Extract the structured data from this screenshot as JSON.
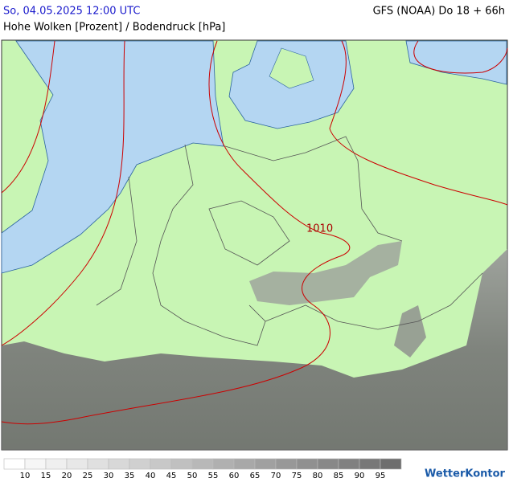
{
  "header": {
    "datetime": "So, 04.05.2025 12:00 UTC",
    "model": "GFS (NOAA) Do 18 + 66h",
    "subtitle": "Hohe Wolken [Prozent] / Bodendruck [hPa]"
  },
  "map": {
    "isobar_label": "1010"
  },
  "legend": {
    "colors": [
      "#ffffff",
      "#f6f6f6",
      "#efefef",
      "#e8e8e8",
      "#e0e0e0",
      "#d8d8d8",
      "#d0d0d0",
      "#c8c8c8",
      "#c0c0c0",
      "#b8b8b8",
      "#b0b0b0",
      "#a8a8a8",
      "#a0a0a0",
      "#989898",
      "#909090",
      "#888888",
      "#808080",
      "#787878",
      "#6e6e6e"
    ],
    "labels": [
      10,
      15,
      20,
      25,
      30,
      35,
      40,
      45,
      50,
      55,
      60,
      65,
      70,
      75,
      80,
      85,
      90,
      95
    ]
  },
  "logo": "WetterKontor"
}
